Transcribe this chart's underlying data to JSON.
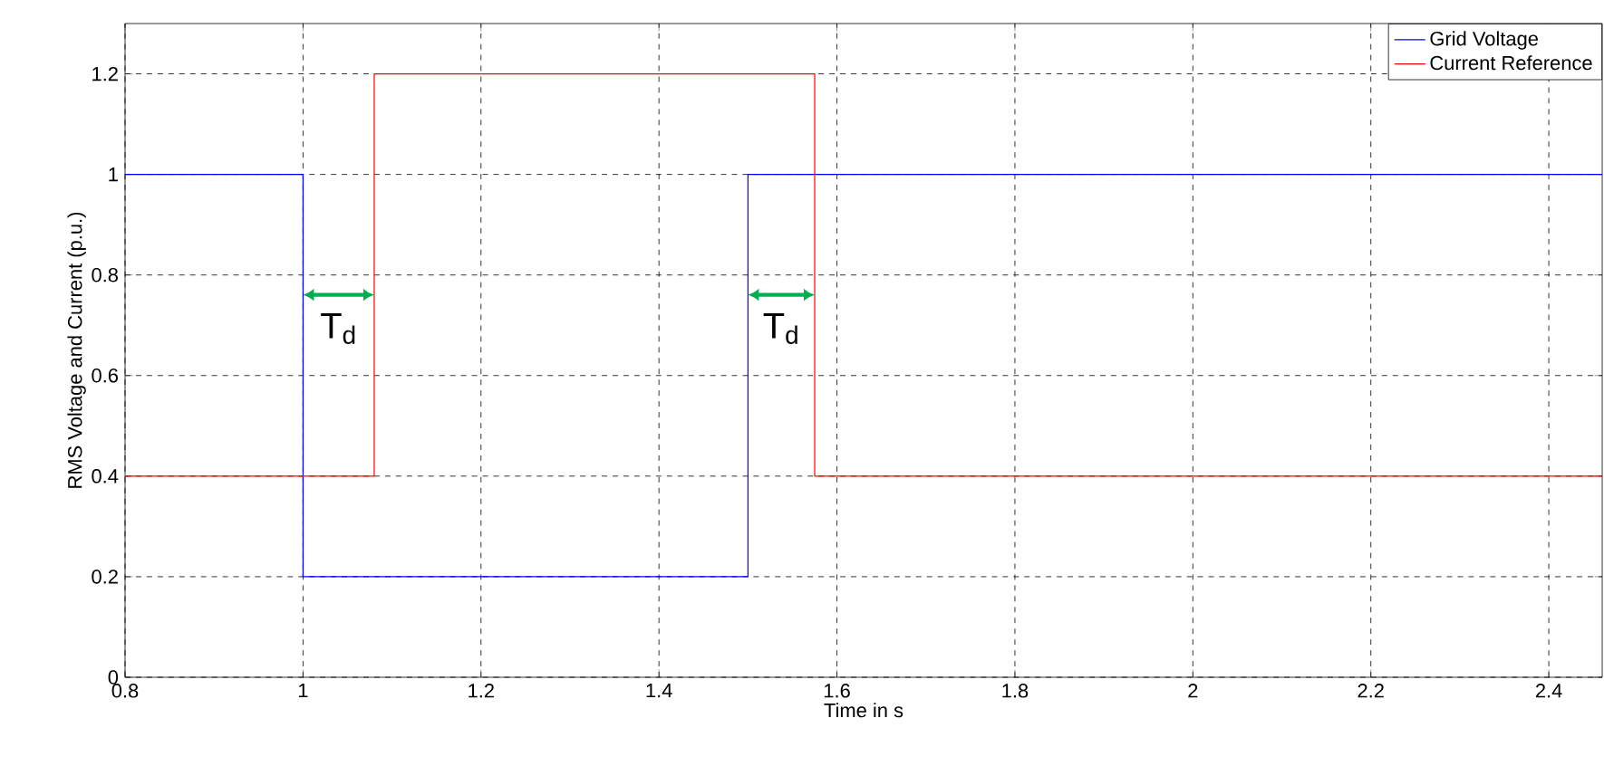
{
  "chart_data": {
    "type": "step",
    "xlabel": "Time in s",
    "ylabel": "RMS Voltage and Current (p.u.)",
    "xlim": [
      0.8,
      2.46
    ],
    "ylim": [
      0,
      1.3
    ],
    "xticks": [
      0.8,
      1,
      1.2,
      1.4,
      1.6,
      1.8,
      2,
      2.2,
      2.4
    ],
    "yticks": [
      0,
      0.2,
      0.4,
      0.6,
      0.8,
      1,
      1.2
    ],
    "grid": true,
    "legend": "top right",
    "marker": "none",
    "line_style": "solid",
    "series": [
      {
        "name": "Grid Voltage",
        "color": "#0000ff",
        "x": [
          0.8,
          1,
          1.5,
          2.46
        ],
        "values": [
          1,
          0.2,
          1,
          1
        ]
      },
      {
        "name": "Current Reference",
        "color": "#ff0000",
        "x": [
          0.8,
          1.08,
          1.575,
          2.46
        ],
        "values": [
          0.4,
          1.2,
          0.4,
          0.4
        ]
      }
    ],
    "annotations": [
      "T$_{d}$",
      "T$_{d}$"
    ]
  }
}
